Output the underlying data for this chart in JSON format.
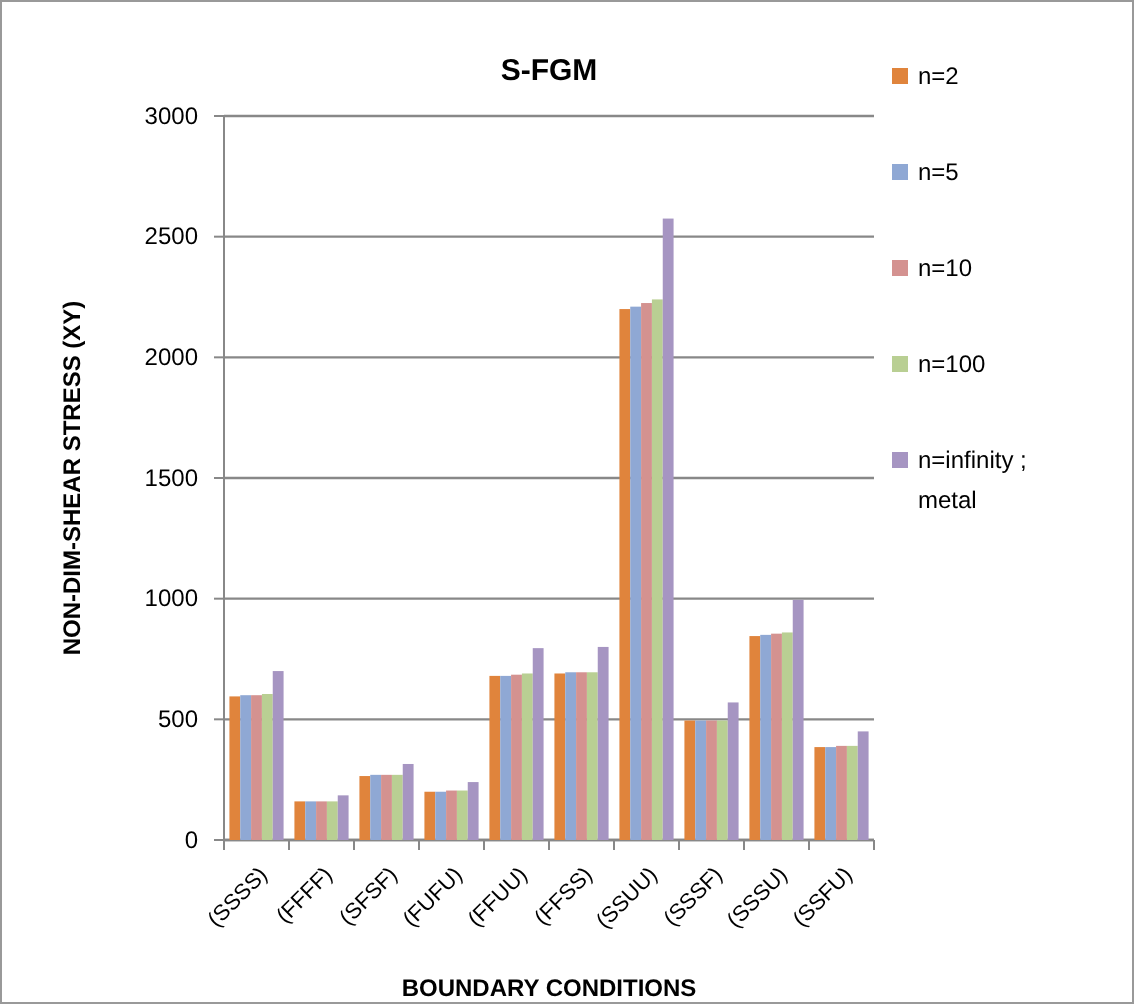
{
  "chart_data": {
    "type": "bar",
    "title": "S-FGM",
    "xlabel": "BOUNDARY CONDITIONS",
    "ylabel": "NON-DIM-SHEAR STRESS (XY)",
    "categories": [
      "(SSSS)",
      "(FFFF)",
      "(SFSF)",
      "(FUFU)",
      "(FFUU)",
      "(FFSS)",
      "(SSUU)",
      "(SSSF)",
      "(SSSU)",
      "(SSFU)"
    ],
    "series": [
      {
        "name": "n=2",
        "color": "#e0843c",
        "values": [
          595,
          160,
          265,
          200,
          680,
          690,
          2200,
          495,
          845,
          385
        ]
      },
      {
        "name": "n=5",
        "color": "#8fa8d4",
        "values": [
          600,
          160,
          270,
          200,
          680,
          695,
          2210,
          495,
          850,
          385
        ]
      },
      {
        "name": "n=10",
        "color": "#d49290",
        "values": [
          600,
          160,
          270,
          205,
          685,
          695,
          2225,
          495,
          855,
          390
        ]
      },
      {
        "name": "n=100",
        "color": "#b9cf93",
        "values": [
          605,
          160,
          270,
          205,
          690,
          695,
          2240,
          495,
          860,
          390
        ]
      },
      {
        "name": "n=infinity ; metal",
        "color": "#a695c2",
        "values": [
          700,
          185,
          315,
          240,
          795,
          800,
          2575,
          570,
          995,
          450
        ]
      }
    ],
    "ylim": [
      0,
      3000
    ],
    "yticks": [
      0,
      500,
      1000,
      1500,
      2000,
      2500,
      3000
    ],
    "grid": "y",
    "legend": "right"
  }
}
